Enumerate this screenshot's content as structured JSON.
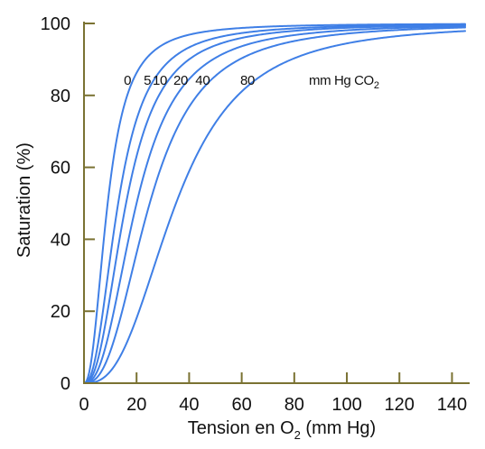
{
  "chart_data": {
    "type": "line",
    "xlabel": {
      "main": "Tension en O",
      "sub": "2",
      "suffix": " (mm Hg)"
    },
    "ylabel": "Saturation (%)",
    "xlim": [
      0,
      145
    ],
    "ylim": [
      0,
      100
    ],
    "xticks": [
      0,
      20,
      40,
      60,
      80,
      100,
      120,
      140
    ],
    "yticks": [
      0,
      20,
      40,
      60,
      80,
      100
    ],
    "grid": false,
    "curve_color": "#3f7fe6",
    "axis_color": "#7a7232",
    "unit_label": {
      "main": "mm Hg CO",
      "sub": "2"
    },
    "series": [
      {
        "name": "0",
        "p50": 9,
        "n": 2.3
      },
      {
        "name": "5",
        "p50": 13,
        "n": 2.35
      },
      {
        "name": "10",
        "p50": 16,
        "n": 2.4
      },
      {
        "name": "20",
        "p50": 20,
        "n": 2.45
      },
      {
        "name": "40",
        "p50": 25,
        "n": 2.55
      },
      {
        "name": "80",
        "p50": 35,
        "n": 2.7
      }
    ]
  }
}
